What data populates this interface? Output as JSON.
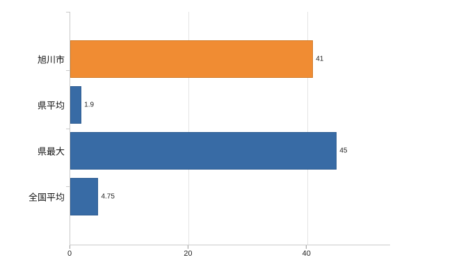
{
  "chart_data": {
    "type": "bar",
    "orientation": "horizontal",
    "title": "",
    "categories": [
      "旭川市",
      "県平均",
      "県最大",
      "全国平均"
    ],
    "values": [
      41,
      1.9,
      45,
      4.75
    ],
    "value_labels": [
      "41",
      "1.9",
      "45",
      "4.75"
    ],
    "colors": [
      "#f08c33",
      "#386ba5",
      "#386ba5",
      "#386ba5"
    ],
    "border_colors": [
      "#d27a26",
      "#2f5d92",
      "#2f5d92",
      "#2f5d92"
    ],
    "xlim": [
      0,
      54
    ],
    "xticks": [
      0,
      20,
      40
    ],
    "xtick_labels": [
      "0",
      "20",
      "40"
    ],
    "grid": "vertical-gridlines-at-ticks",
    "legend": "none",
    "background": "#ffffff"
  }
}
